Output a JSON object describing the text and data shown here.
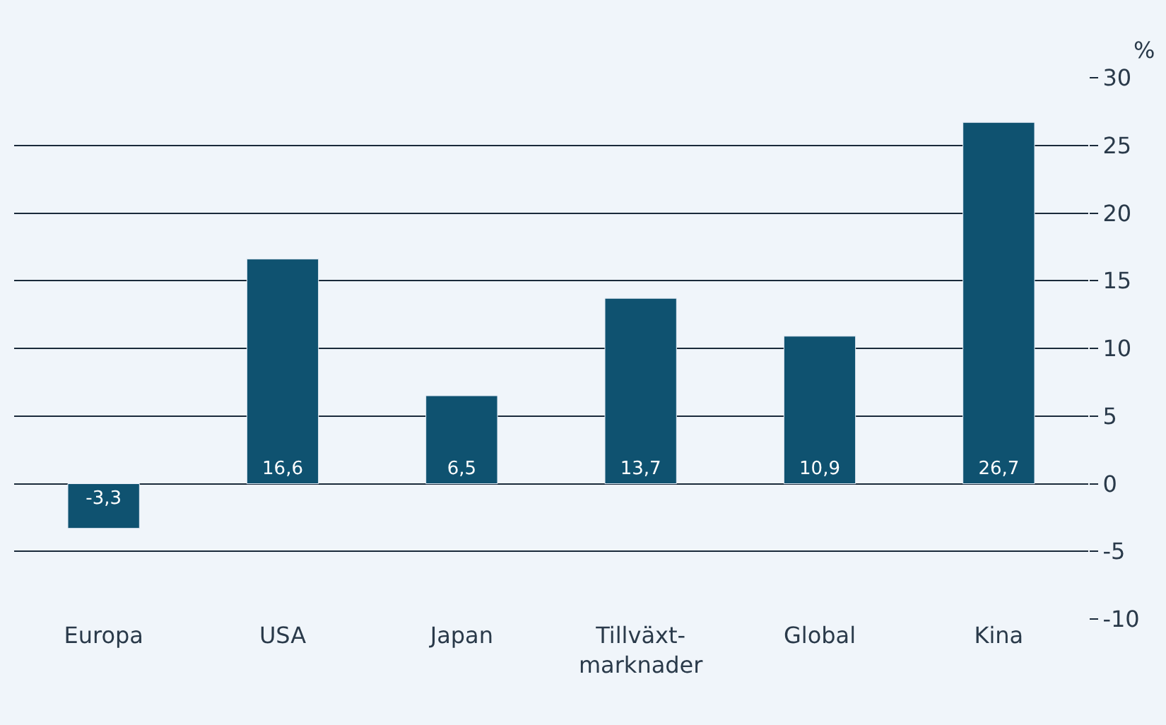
{
  "chart_data": {
    "type": "bar",
    "ylabel": "%",
    "categories": [
      "Europa",
      "USA",
      "Japan",
      "Tillväxt-\nmarknader",
      "Global",
      "Kina"
    ],
    "values": [
      -3.3,
      16.6,
      6.5,
      13.7,
      10.9,
      26.7
    ],
    "color": "#0f5270",
    "value_labels": [
      "-3,3",
      "16,6",
      "6,5",
      "13,7",
      "10,9",
      "26,7"
    ],
    "ylim": [
      -10,
      30
    ],
    "yticks": [
      -10,
      -5,
      0,
      5,
      10,
      15,
      20,
      25,
      30
    ],
    "grid": "y",
    "legend": false
  }
}
